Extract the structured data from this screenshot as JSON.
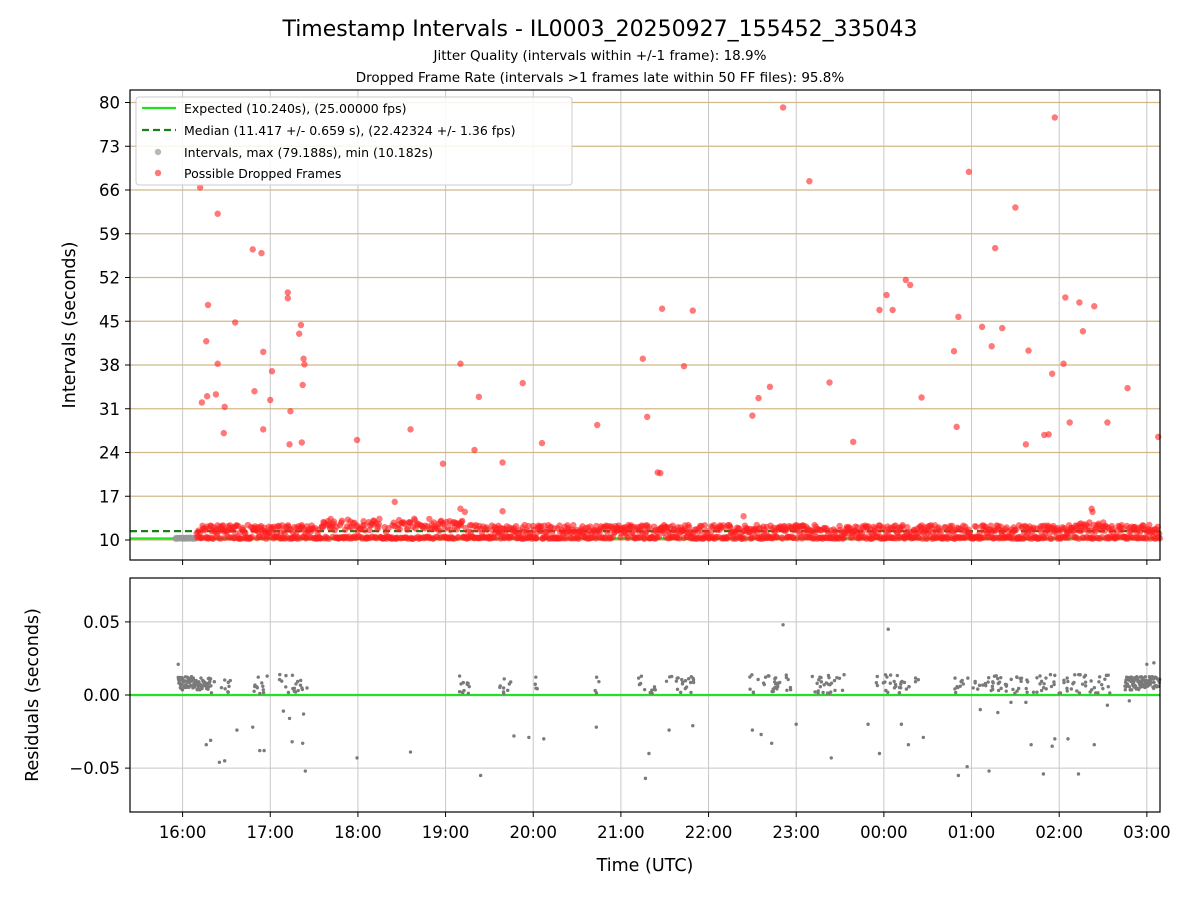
{
  "chart_data": [
    {
      "type": "scatter",
      "panel": "intervals",
      "title": "Timestamp Intervals - IL0003_20250927_155452_335043",
      "subtitle_lines": [
        "Jitter Quality (intervals within +/-1 frame): 18.9%",
        "Dropped Frame Rate (intervals >1 frames late within 50 FF files): 95.8%"
      ],
      "ylabel": "Intervals (seconds)",
      "xlabel": "",
      "xlim": [
        15.4,
        27.15
      ],
      "ylim": [
        6.8,
        82.0
      ],
      "yticks": [
        10,
        17,
        24,
        31,
        38,
        45,
        52,
        59,
        66,
        73,
        80
      ],
      "ytick_labels": [
        "10",
        "17",
        "24",
        "31",
        "38",
        "45",
        "52",
        "59",
        "66",
        "73",
        "80"
      ],
      "xticks": [
        16,
        17,
        18,
        19,
        20,
        21,
        22,
        23,
        24,
        25,
        26,
        27
      ],
      "xtick_labels": [
        "16:00",
        "17:00",
        "18:00",
        "19:00",
        "20:00",
        "21:00",
        "22:00",
        "23:00",
        "00:00",
        "01:00",
        "02:00",
        "03:00"
      ],
      "grid": true,
      "legend_position": "upper left",
      "lines": [
        {
          "name": "Expected",
          "label": "Expected (10.240s), (25.00000 fps)",
          "y": 10.24,
          "color": "#22e022",
          "style": "solid"
        },
        {
          "name": "Median",
          "label": "Median (11.417 +/- 0.659 s), (22.42324 +/- 1.36 fps)",
          "y": 11.417,
          "color": "#1a7f1a",
          "style": "dashed"
        }
      ],
      "series": [
        {
          "name": "Intervals",
          "label": "Intervals, max (79.188s), min (10.182s)",
          "color": "#9a9a9a"
        },
        {
          "name": "Possible Dropped Frames",
          "label": "Possible Dropped Frames",
          "color": "#ff2020",
          "outliers": [
            [
              16.2,
              66.4
            ],
            [
              16.4,
              62.2
            ],
            [
              16.29,
              47.6
            ],
            [
              16.27,
              41.8
            ],
            [
              16.22,
              32.0
            ],
            [
              16.28,
              33.0
            ],
            [
              16.38,
              33.3
            ],
            [
              16.4,
              38.2
            ],
            [
              16.47,
              27.1
            ],
            [
              16.48,
              31.3
            ],
            [
              16.6,
              44.8
            ],
            [
              16.8,
              56.5
            ],
            [
              16.9,
              55.9
            ],
            [
              16.92,
              40.1
            ],
            [
              16.82,
              33.8
            ],
            [
              16.92,
              27.7
            ],
            [
              17.0,
              32.4
            ],
            [
              17.02,
              37.0
            ],
            [
              17.2,
              49.6
            ],
            [
              17.2,
              48.7
            ],
            [
              17.23,
              30.6
            ],
            [
              17.22,
              25.3
            ],
            [
              17.33,
              43.0
            ],
            [
              17.35,
              44.4
            ],
            [
              17.38,
              39.0
            ],
            [
              17.39,
              38.1
            ],
            [
              17.37,
              34.8
            ],
            [
              17.36,
              25.6
            ],
            [
              17.99,
              26.0
            ],
            [
              18.42,
              16.1
            ],
            [
              18.6,
              27.7
            ],
            [
              18.97,
              22.2
            ],
            [
              19.17,
              38.2
            ],
            [
              19.17,
              15.0
            ],
            [
              19.22,
              14.5
            ],
            [
              19.33,
              24.4
            ],
            [
              19.38,
              32.9
            ],
            [
              19.65,
              22.4
            ],
            [
              19.65,
              14.6
            ],
            [
              19.88,
              35.1
            ],
            [
              20.1,
              25.5
            ],
            [
              20.73,
              28.4
            ],
            [
              21.25,
              39.0
            ],
            [
              21.3,
              29.7
            ],
            [
              21.42,
              20.8
            ],
            [
              21.45,
              20.7
            ],
            [
              21.47,
              47.0
            ],
            [
              21.72,
              37.8
            ],
            [
              21.82,
              46.7
            ],
            [
              22.4,
              13.8
            ],
            [
              22.5,
              29.9
            ],
            [
              22.57,
              32.7
            ],
            [
              22.7,
              34.5
            ],
            [
              22.85,
              79.2
            ],
            [
              23.15,
              67.4
            ],
            [
              23.38,
              35.2
            ],
            [
              23.65,
              25.7
            ],
            [
              23.95,
              46.8
            ],
            [
              24.03,
              49.2
            ],
            [
              24.1,
              46.8
            ],
            [
              24.25,
              51.6
            ],
            [
              24.3,
              50.8
            ],
            [
              24.43,
              32.8
            ],
            [
              24.8,
              40.2
            ],
            [
              24.83,
              28.1
            ],
            [
              24.85,
              45.7
            ],
            [
              24.97,
              68.9
            ],
            [
              25.12,
              44.1
            ],
            [
              25.23,
              41.0
            ],
            [
              25.27,
              56.7
            ],
            [
              25.35,
              43.9
            ],
            [
              25.5,
              63.2
            ],
            [
              25.65,
              40.3
            ],
            [
              25.62,
              25.3
            ],
            [
              25.83,
              26.8
            ],
            [
              25.88,
              26.9
            ],
            [
              25.92,
              36.6
            ],
            [
              25.95,
              77.6
            ],
            [
              26.05,
              38.2
            ],
            [
              26.07,
              48.8
            ],
            [
              26.12,
              28.8
            ],
            [
              26.23,
              48.0
            ],
            [
              26.27,
              43.4
            ],
            [
              26.37,
              15.0
            ],
            [
              26.38,
              14.5
            ],
            [
              26.4,
              47.4
            ],
            [
              26.55,
              28.8
            ],
            [
              26.78,
              34.3
            ],
            [
              27.13,
              26.5
            ]
          ],
          "band": {
            "x_range": [
              16.16,
              27.15
            ],
            "y_range": [
              10.2,
              13.0
            ]
          }
        }
      ],
      "gray_band": {
        "x_range": [
          15.92,
          16.16
        ],
        "y": 10.28
      }
    },
    {
      "type": "scatter",
      "panel": "residuals",
      "ylabel": "Residuals (seconds)",
      "xlabel": "Time (UTC)",
      "xlim": [
        15.4,
        27.15
      ],
      "ylim": [
        -0.08,
        0.08
      ],
      "yticks": [
        0.05,
        0.0,
        -0.05
      ],
      "ytick_labels": [
        "0.05",
        "0.00",
        "−0.05"
      ],
      "xticks": [
        16,
        17,
        18,
        19,
        20,
        21,
        22,
        23,
        24,
        25,
        26,
        27
      ],
      "xtick_labels": [
        "16:00",
        "17:00",
        "18:00",
        "19:00",
        "20:00",
        "21:00",
        "22:00",
        "23:00",
        "00:00",
        "01:00",
        "02:00",
        "03:00"
      ],
      "grid": true,
      "reference_line": {
        "y": 0.0,
        "color": "#22e022"
      },
      "series": [
        {
          "name": "Residuals",
          "color": "#7a7a7a",
          "points": [
            [
              15.95,
              0.021
            ],
            [
              16.27,
              -0.034
            ],
            [
              16.32,
              -0.031
            ],
            [
              16.42,
              -0.046
            ],
            [
              16.48,
              -0.045
            ],
            [
              16.62,
              -0.024
            ],
            [
              16.8,
              -0.022
            ],
            [
              16.88,
              -0.038
            ],
            [
              16.93,
              -0.038
            ],
            [
              17.15,
              -0.011
            ],
            [
              17.22,
              -0.016
            ],
            [
              17.25,
              -0.032
            ],
            [
              17.37,
              -0.033
            ],
            [
              17.38,
              -0.013
            ],
            [
              17.4,
              -0.052
            ],
            [
              17.99,
              -0.043
            ],
            [
              18.6,
              -0.039
            ],
            [
              19.4,
              -0.055
            ],
            [
              19.78,
              -0.028
            ],
            [
              19.95,
              -0.029
            ],
            [
              20.12,
              -0.03
            ],
            [
              20.72,
              -0.022
            ],
            [
              21.28,
              -0.057
            ],
            [
              21.32,
              -0.04
            ],
            [
              21.55,
              -0.024
            ],
            [
              21.82,
              -0.021
            ],
            [
              22.5,
              -0.024
            ],
            [
              22.6,
              -0.027
            ],
            [
              22.72,
              -0.033
            ],
            [
              22.85,
              0.048
            ],
            [
              23.0,
              -0.02
            ],
            [
              23.4,
              -0.043
            ],
            [
              23.82,
              -0.02
            ],
            [
              23.95,
              -0.04
            ],
            [
              24.05,
              0.045
            ],
            [
              24.2,
              -0.02
            ],
            [
              24.28,
              -0.034
            ],
            [
              24.45,
              -0.029
            ],
            [
              24.85,
              -0.055
            ],
            [
              24.95,
              -0.049
            ],
            [
              25.1,
              -0.01
            ],
            [
              25.2,
              -0.052
            ],
            [
              25.3,
              -0.012
            ],
            [
              25.45,
              -0.005
            ],
            [
              25.62,
              -0.005
            ],
            [
              25.68,
              -0.034
            ],
            [
              25.82,
              -0.054
            ],
            [
              25.92,
              -0.035
            ],
            [
              25.95,
              -0.03
            ],
            [
              26.1,
              -0.03
            ],
            [
              26.22,
              -0.054
            ],
            [
              26.4,
              -0.034
            ],
            [
              26.55,
              -0.007
            ],
            [
              26.8,
              -0.004
            ],
            [
              27.0,
              0.021
            ],
            [
              27.08,
              0.022
            ]
          ],
          "dense_clusters": [
            {
              "x_range": [
                15.95,
                16.3
              ],
              "y": 0.008
            },
            {
              "x_range": [
                26.75,
                27.15
              ],
              "y": 0.008
            }
          ],
          "sparse_groups": [
            [
              16.3,
              16.55
            ],
            [
              16.78,
              16.98
            ],
            [
              17.1,
              17.42
            ],
            [
              19.15,
              19.35
            ],
            [
              19.6,
              19.75
            ],
            [
              19.98,
              20.05
            ],
            [
              20.7,
              20.75
            ],
            [
              21.2,
              21.4
            ],
            [
              21.5,
              21.85
            ],
            [
              22.45,
              22.95
            ],
            [
              23.1,
              23.55
            ],
            [
              23.9,
              24.4
            ],
            [
              24.78,
              25.4
            ],
            [
              25.45,
              25.95
            ],
            [
              26.0,
              26.6
            ]
          ]
        }
      ]
    }
  ]
}
